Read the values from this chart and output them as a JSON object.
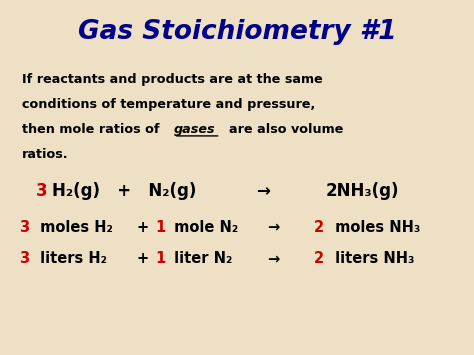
{
  "title": "Gas Stoichiometry #1",
  "title_color": "#00008B",
  "bg_color": "#EDE0C4",
  "body_color": "#000000",
  "red_color": "#CC0000",
  "para_line1": "If reactants and products are at the same",
  "para_line2": "conditions of temperature and pressure,",
  "para_line3a": "then mole ratios of ",
  "para_gases": "gases",
  "para_line3b": "  are also volume",
  "para_line4": "ratios."
}
